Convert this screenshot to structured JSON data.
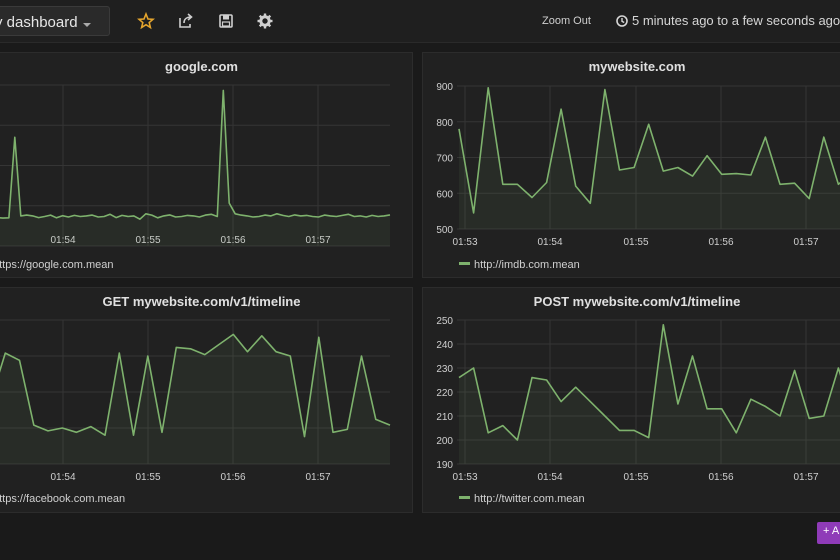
{
  "toolbar": {
    "dashboard_title": "y dashboard",
    "zoom_out_label": "Zoom Out",
    "time_range": "5 minutes ago to a few seconds ago",
    "icons": [
      "star-icon",
      "share-icon",
      "save-icon",
      "gear-icon"
    ],
    "accent_star": "#e5a52d"
  },
  "add_row_label": "+ A",
  "series_color": "#7eb26d",
  "chart_data": [
    {
      "type": "line",
      "title": "google.com",
      "x_ticks": [
        "01:54",
        "01:55",
        "01:56",
        "01:57"
      ],
      "y_ticks": [],
      "ylim": [
        100,
        700
      ],
      "legend_position": "bottom-left",
      "series": [
        {
          "name": "https://google.com.mean",
          "values": [
            210,
            206,
            204,
            205,
            505,
            212,
            215,
            212,
            206,
            210,
            215,
            205,
            213,
            208,
            214,
            210,
            212,
            215,
            208,
            210,
            218,
            206,
            214,
            210,
            212,
            200,
            220,
            215,
            205,
            212,
            216,
            208,
            210,
            214,
            212,
            208,
            215,
            218,
            210,
            680,
            260,
            220,
            215,
            212,
            208,
            210,
            215,
            212,
            220,
            214,
            210,
            216,
            212,
            214,
            210,
            208,
            215,
            212,
            210,
            214,
            218,
            210,
            212,
            208,
            214,
            210,
            212,
            216
          ]
        }
      ]
    },
    {
      "type": "line",
      "title": "mywebsite.com",
      "x_ticks": [
        "01:53",
        "01:54",
        "01:55",
        "01:56",
        "01:57"
      ],
      "y_ticks": [
        "500",
        "600",
        "700",
        "800",
        "900"
      ],
      "ylim": [
        500,
        900
      ],
      "legend_position": "bottom-left",
      "series": [
        {
          "name": "http://imdb.com.mean",
          "values": [
            780,
            545,
            895,
            625,
            625,
            588,
            630,
            835,
            620,
            572,
            890,
            665,
            672,
            793,
            662,
            672,
            648,
            705,
            653,
            655,
            651,
            757,
            625,
            628,
            585,
            757,
            625,
            660
          ]
        }
      ]
    },
    {
      "type": "line",
      "title": "GET mywebsite.com/v1/timeline",
      "x_ticks": [
        "01:54",
        "01:55",
        "01:56",
        "01:57"
      ],
      "y_ticks": [],
      "ylim": [
        0,
        100
      ],
      "legend_position": "bottom-left",
      "series": [
        {
          "name": "https://facebook.com.mean",
          "values": [
            45,
            77,
            72,
            27,
            23,
            25,
            22,
            26,
            20,
            77,
            20,
            75,
            22,
            81,
            80,
            76,
            83,
            90,
            78,
            89,
            78,
            75,
            19,
            88,
            22,
            24,
            75,
            31,
            27
          ]
        }
      ]
    },
    {
      "type": "line",
      "title": "POST mywebsite.com/v1/timeline",
      "x_ticks": [
        "01:53",
        "01:54",
        "01:55",
        "01:56",
        "01:57"
      ],
      "y_ticks": [
        "190",
        "200",
        "210",
        "220",
        "230",
        "240",
        "250"
      ],
      "ylim": [
        190,
        250
      ],
      "legend_position": "bottom-left",
      "series": [
        {
          "name": "http://twitter.com.mean",
          "values": [
            226,
            230,
            203,
            206,
            200,
            226,
            225,
            216,
            222,
            216,
            210,
            204,
            204,
            201,
            248,
            215,
            235,
            213,
            213,
            203,
            217,
            214,
            210,
            229,
            209,
            210,
            230,
            210
          ]
        }
      ]
    }
  ]
}
